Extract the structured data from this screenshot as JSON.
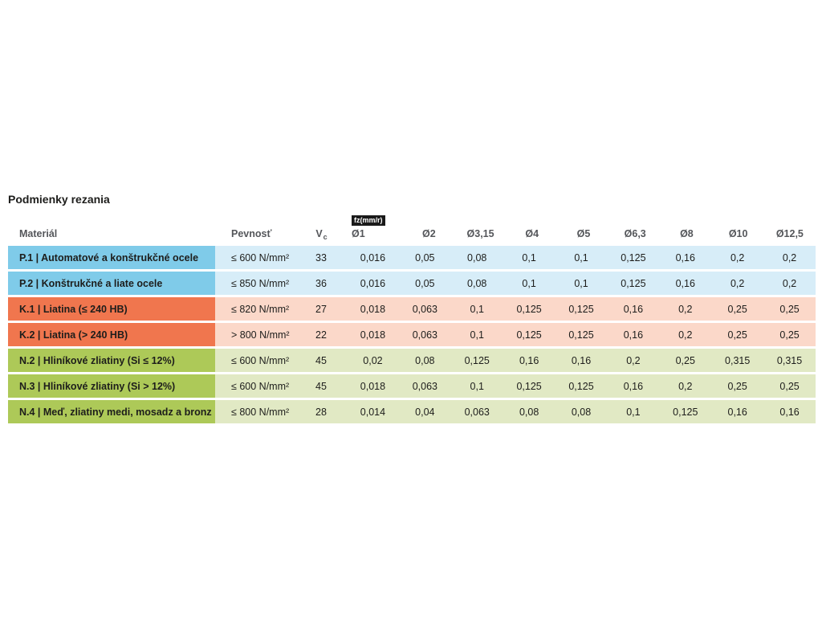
{
  "page": {
    "title": "Podmienky rezania"
  },
  "colors": {
    "steel_dark": "#7fcbe9",
    "steel_light": "#d7edf8",
    "cast_iron_dark": "#f0764e",
    "cast_iron_light": "#fbd8c9",
    "nonferrous_dark": "#adc958",
    "nonferrous_light": "#e1e9c4",
    "badge_bg": "#1a1a1a",
    "badge_text": "#ffffff",
    "header_text": "#54565a",
    "body_text": "#1d1d1b"
  },
  "table": {
    "headers": {
      "material": "Materiál",
      "strength": "Pevnosť",
      "vc_main": "V",
      "vc_sub": "c",
      "fz_badge": "fz(mm/r)",
      "diameters": [
        "Ø1",
        "Ø2",
        "Ø3,15",
        "Ø4",
        "Ø5",
        "Ø6,3",
        "Ø8",
        "Ø10",
        "Ø12,5"
      ]
    },
    "rows": [
      {
        "group": "P",
        "material": "P.1 | Automatové a konštrukčné ocele",
        "strength": "≤ 600 N/mm²",
        "vc": "33",
        "fz": [
          "0,016",
          "0,05",
          "0,08",
          "0,1",
          "0,1",
          "0,125",
          "0,16",
          "0,2",
          "0,2"
        ]
      },
      {
        "group": "P",
        "material": "P.2 | Konštrukčné a liate ocele",
        "strength": "≤ 850 N/mm²",
        "vc": "36",
        "fz": [
          "0,016",
          "0,05",
          "0,08",
          "0,1",
          "0,1",
          "0,125",
          "0,16",
          "0,2",
          "0,2"
        ]
      },
      {
        "group": "K",
        "material": "K.1 | Liatina (≤ 240 HB)",
        "strength": "≤ 820 N/mm²",
        "vc": "27",
        "fz": [
          "0,018",
          "0,063",
          "0,1",
          "0,125",
          "0,125",
          "0,16",
          "0,2",
          "0,25",
          "0,25"
        ]
      },
      {
        "group": "K",
        "material": "K.2 | Liatina (> 240 HB)",
        "strength": "> 800 N/mm²",
        "vc": "22",
        "fz": [
          "0,018",
          "0,063",
          "0,1",
          "0,125",
          "0,125",
          "0,16",
          "0,2",
          "0,25",
          "0,25"
        ]
      },
      {
        "group": "N",
        "material": "N.2 | Hliníkové zliatiny (Si ≤ 12%)",
        "strength": "≤ 600 N/mm²",
        "vc": "45",
        "fz": [
          "0,02",
          "0,08",
          "0,125",
          "0,16",
          "0,16",
          "0,2",
          "0,25",
          "0,315",
          "0,315"
        ]
      },
      {
        "group": "N",
        "material": "N.3 | Hliníkové zliatiny (Si > 12%)",
        "strength": "≤ 600 N/mm²",
        "vc": "45",
        "fz": [
          "0,018",
          "0,063",
          "0,1",
          "0,125",
          "0,125",
          "0,16",
          "0,2",
          "0,25",
          "0,25"
        ]
      },
      {
        "group": "N",
        "material": "N.4 | Meď, zliatiny medi, mosadz a bronz",
        "strength": "≤ 800 N/mm²",
        "vc": "28",
        "fz": [
          "0,014",
          "0,04",
          "0,063",
          "0,08",
          "0,08",
          "0,1",
          "0,125",
          "0,16",
          "0,16"
        ]
      }
    ]
  }
}
